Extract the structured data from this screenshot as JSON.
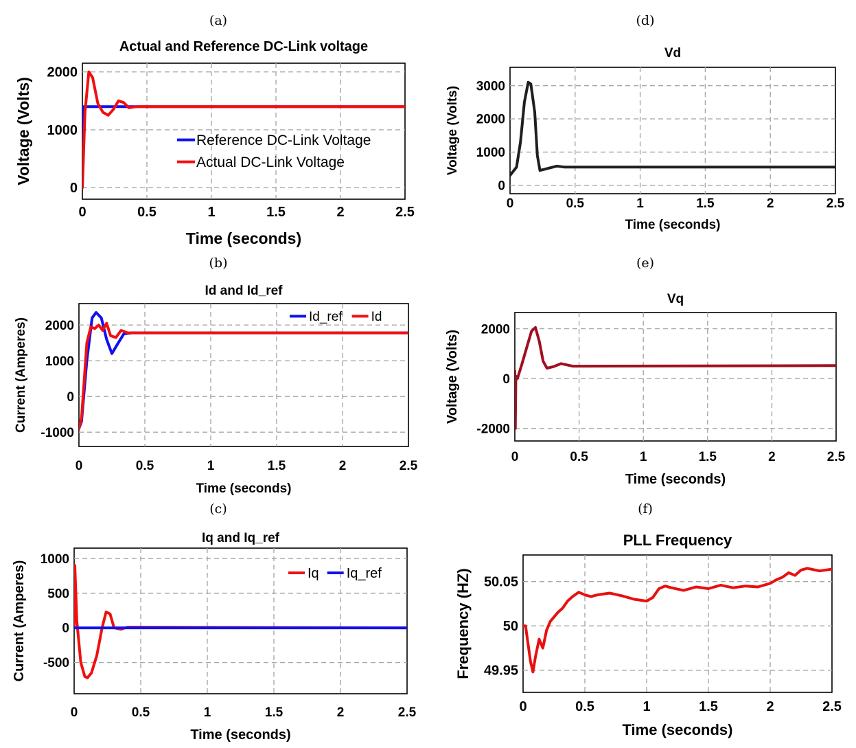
{
  "figure": {
    "panel_labels": [
      "(a)",
      "(b)",
      "(c)",
      "(d)",
      "(e)",
      "(f)"
    ]
  },
  "chart_data": [
    {
      "id": "a",
      "type": "line",
      "title": "Actual and Reference DC-Link voltage",
      "xlabel": "Time (seconds)",
      "ylabel": "Voltage (Volts)",
      "xlim": [
        0,
        2.5
      ],
      "ylim": [
        -200,
        2150
      ],
      "xticks": [
        0,
        0.5,
        1,
        1.5,
        2,
        2.5
      ],
      "xtick_labels": [
        "0",
        "0.5",
        "1",
        "1.5",
        "2",
        "2.5"
      ],
      "yticks": [
        0,
        1000,
        2000
      ],
      "ytick_labels": [
        "0",
        "1000",
        "2000"
      ],
      "grid": true,
      "legend": {
        "position": "center-right",
        "entries": [
          "Reference DC-Link Voltage",
          "Actual DC-Link Voltage"
        ]
      },
      "series": [
        {
          "name": "Reference DC-Link Voltage",
          "color": "#1010f0",
          "x": [
            0,
            0.01,
            0.02,
            2.5
          ],
          "y": [
            0,
            1400,
            1400,
            1400
          ]
        },
        {
          "name": "Actual DC-Link Voltage",
          "color": "#f01010",
          "x": [
            0,
            0.02,
            0.05,
            0.08,
            0.12,
            0.16,
            0.2,
            0.24,
            0.28,
            0.32,
            0.36,
            0.42,
            0.5,
            2.5
          ],
          "y": [
            0,
            1300,
            2000,
            1900,
            1450,
            1300,
            1250,
            1350,
            1500,
            1470,
            1380,
            1400,
            1400,
            1400
          ]
        }
      ]
    },
    {
      "id": "b",
      "type": "line",
      "title": "Id and Id_ref",
      "xlabel": "Time (seconds)",
      "ylabel": "Current (Amperes)",
      "xlim": [
        0,
        2.5
      ],
      "ylim": [
        -1400,
        2600
      ],
      "xticks": [
        0,
        0.5,
        1,
        1.5,
        2,
        2.5
      ],
      "xtick_labels": [
        "0",
        "0.5",
        "1",
        "1.5",
        "2",
        "2.5"
      ],
      "yticks": [
        -1000,
        0,
        1000,
        2000
      ],
      "ytick_labels": [
        "-1000",
        "0",
        "1000",
        "2000"
      ],
      "grid": true,
      "legend": {
        "position": "top-right",
        "entries": [
          "Id_ref",
          "Id"
        ]
      },
      "series": [
        {
          "name": "Id_ref",
          "color": "#1010f0",
          "x": [
            0,
            0.02,
            0.06,
            0.1,
            0.13,
            0.17,
            0.21,
            0.25,
            0.29,
            0.34,
            0.4,
            2.5
          ],
          "y": [
            -900,
            -700,
            1000,
            2200,
            2350,
            2200,
            1600,
            1200,
            1450,
            1750,
            1780,
            1780
          ]
        },
        {
          "name": "Id",
          "color": "#f01010",
          "x": [
            0,
            0.02,
            0.06,
            0.09,
            0.12,
            0.15,
            0.18,
            0.21,
            0.24,
            0.28,
            0.32,
            0.37,
            0.45,
            2.5
          ],
          "y": [
            -900,
            -600,
            1500,
            1950,
            1900,
            2000,
            1850,
            2050,
            1700,
            1650,
            1850,
            1780,
            1780,
            1780
          ]
        }
      ]
    },
    {
      "id": "c",
      "type": "line",
      "title": "Iq and Iq_ref",
      "xlabel": "Time (seconds)",
      "ylabel": "Current (Amperes)",
      "xlim": [
        0,
        2.5
      ],
      "ylim": [
        -950,
        1150
      ],
      "xticks": [
        0,
        0.5,
        1,
        1.5,
        2,
        2.5
      ],
      "xtick_labels": [
        "0",
        "0.5",
        "1",
        "1.5",
        "2",
        "2.5"
      ],
      "yticks": [
        -500,
        0,
        500,
        1000
      ],
      "ytick_labels": [
        "-500",
        "0",
        "500",
        "1000"
      ],
      "grid": true,
      "legend": {
        "position": "top-right",
        "entries": [
          "Iq",
          "Iq_ref"
        ]
      },
      "series": [
        {
          "name": "Iq",
          "color": "#f01010",
          "x": [
            0,
            0.005,
            0.02,
            0.05,
            0.08,
            0.1,
            0.13,
            0.17,
            0.21,
            0.24,
            0.27,
            0.3,
            0.35,
            0.4,
            2.5
          ],
          "y": [
            0,
            900,
            100,
            -500,
            -700,
            -720,
            -650,
            -400,
            0,
            230,
            200,
            0,
            -20,
            10,
            0
          ]
        },
        {
          "name": "Iq_ref",
          "color": "#1010f0",
          "x": [
            0,
            2.5
          ],
          "y": [
            0,
            0
          ]
        }
      ]
    },
    {
      "id": "d",
      "type": "line",
      "title": "Vd",
      "xlabel": "Time (seconds)",
      "ylabel": "Voltage (Volts)",
      "xlim": [
        0,
        2.5
      ],
      "ylim": [
        -250,
        3550
      ],
      "xticks": [
        0,
        0.5,
        1,
        1.5,
        2,
        2.5
      ],
      "xtick_labels": [
        "0",
        "0.5",
        "1",
        "1.5",
        "2",
        "2.5"
      ],
      "yticks": [
        0,
        1000,
        2000,
        3000
      ],
      "ytick_labels": [
        "0",
        "1000",
        "2000",
        "3000"
      ],
      "grid": true,
      "series": [
        {
          "name": "Vd",
          "color": "#1f1f1f",
          "x": [
            0,
            0.02,
            0.05,
            0.08,
            0.11,
            0.14,
            0.16,
            0.19,
            0.21,
            0.23,
            0.26,
            0.3,
            0.36,
            0.42,
            2.5
          ],
          "y": [
            300,
            400,
            550,
            1300,
            2500,
            3100,
            3050,
            2200,
            900,
            450,
            480,
            520,
            580,
            550,
            550
          ]
        }
      ]
    },
    {
      "id": "e",
      "type": "line",
      "title": "Vq",
      "xlabel": "Time (seconds)",
      "ylabel": "Voltage (Volts)",
      "xlim": [
        0,
        2.5
      ],
      "ylim": [
        -2500,
        2650
      ],
      "xticks": [
        0,
        0.5,
        1,
        1.5,
        2,
        2.5
      ],
      "xtick_labels": [
        "0",
        "0.5",
        "1",
        "1.5",
        "2",
        "2.5"
      ],
      "yticks": [
        -2000,
        0,
        2000
      ],
      "ytick_labels": [
        "-2000",
        "0",
        "2000"
      ],
      "grid": true,
      "series": [
        {
          "name": "Vq",
          "color": "#a01020",
          "x": [
            0,
            0.004,
            0.008,
            0.02,
            0.05,
            0.09,
            0.13,
            0.16,
            0.19,
            0.22,
            0.25,
            0.3,
            0.36,
            0.45,
            2.5
          ],
          "y": [
            300,
            -2000,
            100,
            0,
            500,
            1200,
            1900,
            2050,
            1500,
            700,
            420,
            480,
            600,
            500,
            520
          ]
        }
      ]
    },
    {
      "id": "f",
      "type": "line",
      "title": "PLL Frequency",
      "xlabel": "Time (seconds)",
      "ylabel": "Frequency (HZ)",
      "xlim": [
        0,
        2.5
      ],
      "ylim": [
        49.925,
        50.08
      ],
      "xticks": [
        0,
        0.5,
        1,
        1.5,
        2,
        2.5
      ],
      "xtick_labels": [
        "0",
        "0.5",
        "1",
        "1.5",
        "2",
        "2.5"
      ],
      "yticks": [
        49.95,
        50,
        50.05
      ],
      "ytick_labels": [
        "49.95",
        "50",
        "50.05"
      ],
      "grid": true,
      "series": [
        {
          "name": "PLL Frequency",
          "color": "#e81010",
          "x": [
            0,
            0.02,
            0.04,
            0.06,
            0.08,
            0.1,
            0.13,
            0.16,
            0.19,
            0.22,
            0.25,
            0.28,
            0.32,
            0.36,
            0.4,
            0.45,
            0.5,
            0.55,
            0.6,
            0.7,
            0.8,
            0.9,
            1.0,
            1.05,
            1.1,
            1.15,
            1.2,
            1.3,
            1.4,
            1.5,
            1.6,
            1.7,
            1.8,
            1.9,
            2.0,
            2.05,
            2.1,
            2.15,
            2.2,
            2.25,
            2.3,
            2.4,
            2.5
          ],
          "y": [
            50.0,
            50.0,
            49.98,
            49.96,
            49.948,
            49.965,
            49.985,
            49.975,
            49.995,
            50.005,
            50.01,
            50.015,
            50.02,
            50.028,
            50.033,
            50.038,
            50.035,
            50.033,
            50.035,
            50.037,
            50.034,
            50.03,
            50.028,
            50.032,
            50.042,
            50.045,
            50.043,
            50.04,
            50.044,
            50.042,
            50.046,
            50.043,
            50.045,
            50.044,
            50.048,
            50.052,
            50.055,
            50.06,
            50.057,
            50.063,
            50.065,
            50.062,
            50.064
          ]
        }
      ]
    }
  ]
}
